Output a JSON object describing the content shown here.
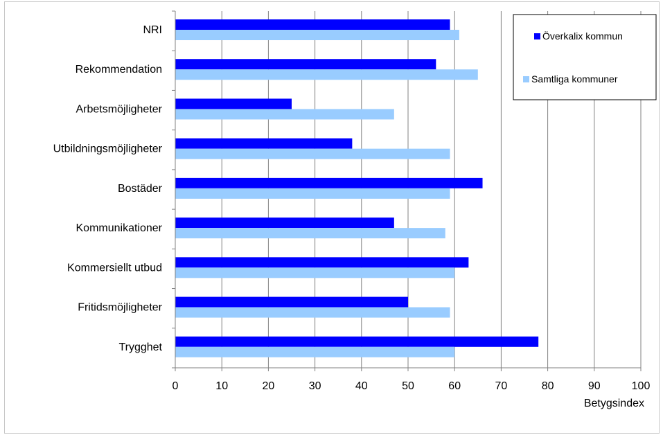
{
  "chart_data": {
    "type": "bar",
    "orientation": "horizontal",
    "categories": [
      "NRI",
      "Rekommendation",
      "Arbetsmöjligheter",
      "Utbildningsmöjligheter",
      "Bostäder",
      "Kommunikationer",
      "Kommersiellt utbud",
      "Fritidsmöjligheter",
      "Trygghet"
    ],
    "series": [
      {
        "name": "Överkalix kommun",
        "color": "#0000ff",
        "values": [
          59,
          56,
          25,
          38,
          66,
          47,
          63,
          50,
          78
        ]
      },
      {
        "name": "Samtliga kommuner",
        "color": "#99ccff",
        "values": [
          61,
          65,
          47,
          59,
          59,
          58,
          60,
          59,
          60
        ]
      }
    ],
    "xlabel": "Betygsindex",
    "xlim": [
      0,
      100
    ],
    "xticks": [
      "0",
      "10",
      "20",
      "30",
      "40",
      "50",
      "60",
      "70",
      "80",
      "90",
      "100"
    ],
    "grid": "vertical",
    "legend_position": "top-right"
  }
}
